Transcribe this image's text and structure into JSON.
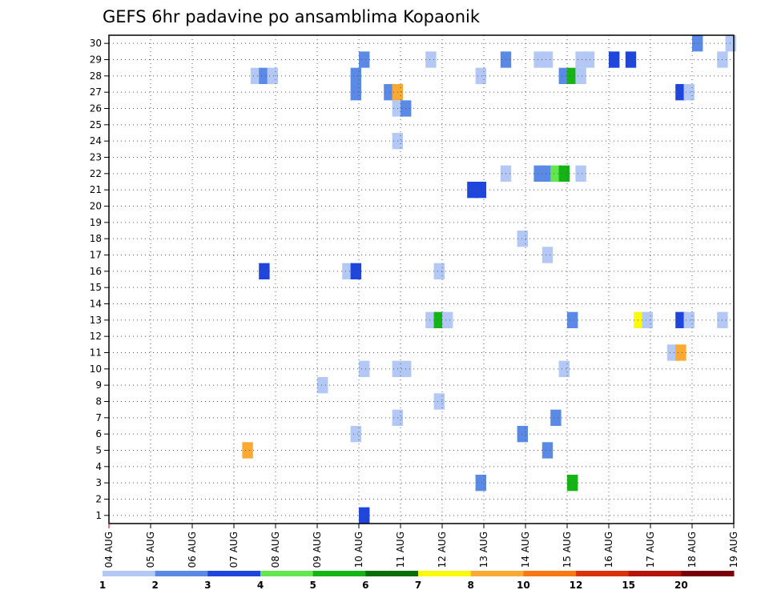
{
  "chart_data": {
    "type": "heatmap",
    "title": "GEFS 6hr padavine po ansamblima Kopaonik",
    "xlabel": "",
    "ylabel": "",
    "x_ticks": [
      "04 AUG",
      "05 AUG",
      "06 AUG",
      "07 AUG",
      "08 AUG",
      "09 AUG",
      "10 AUG",
      "11 AUG",
      "12 AUG",
      "13 AUG",
      "14 AUG",
      "15 AUG",
      "16 AUG",
      "17 AUG",
      "18 AUG",
      "19 AUG"
    ],
    "x_range_days": [
      0,
      15
    ],
    "y_ticks": [
      1,
      2,
      3,
      4,
      5,
      6,
      7,
      8,
      9,
      10,
      11,
      12,
      13,
      14,
      15,
      16,
      17,
      18,
      19,
      20,
      21,
      22,
      23,
      24,
      25,
      26,
      27,
      28,
      29,
      30
    ],
    "y_range": [
      0.5,
      30.5
    ],
    "step_hours": 6,
    "grid": true,
    "legend_position": "bottom",
    "legend": {
      "colors": [
        "#b4c8f5",
        "#5a8ae6",
        "#1e46dc",
        "#64e650",
        "#14b414",
        "#0a6e0a",
        "#fafa0a",
        "#faaa32",
        "#fa7814",
        "#dc320a",
        "#b4140a",
        "#78000a"
      ],
      "labels": [
        "1",
        "2",
        "3",
        "4",
        "5",
        "6",
        "7",
        "8",
        "10",
        "12",
        "15",
        "20"
      ]
    },
    "cells": [
      {
        "day": 14.0,
        "member": 30,
        "color": "#5a8ae6"
      },
      {
        "day": 14.8,
        "member": 30,
        "color": "#b4c8f5"
      },
      {
        "day": 6.0,
        "member": 29,
        "color": "#5a8ae6"
      },
      {
        "day": 7.6,
        "member": 29,
        "color": "#b4c8f5"
      },
      {
        "day": 9.4,
        "member": 29,
        "color": "#5a8ae6"
      },
      {
        "day": 10.2,
        "member": 29,
        "color": "#b4c8f5"
      },
      {
        "day": 10.4,
        "member": 29,
        "color": "#b4c8f5"
      },
      {
        "day": 11.2,
        "member": 29,
        "color": "#b4c8f5"
      },
      {
        "day": 11.4,
        "member": 29,
        "color": "#b4c8f5"
      },
      {
        "day": 12.0,
        "member": 29,
        "color": "#1e46dc"
      },
      {
        "day": 12.4,
        "member": 29,
        "color": "#1e46dc"
      },
      {
        "day": 14.6,
        "member": 29,
        "color": "#b4c8f5"
      },
      {
        "day": 3.4,
        "member": 28,
        "color": "#b4c8f5"
      },
      {
        "day": 3.6,
        "member": 28,
        "color": "#5a8ae6"
      },
      {
        "day": 3.8,
        "member": 28,
        "color": "#b4c8f5"
      },
      {
        "day": 5.8,
        "member": 28,
        "color": "#5a8ae6"
      },
      {
        "day": 8.8,
        "member": 28,
        "color": "#b4c8f5"
      },
      {
        "day": 10.8,
        "member": 28,
        "color": "#5a8ae6"
      },
      {
        "day": 11.0,
        "member": 28,
        "color": "#14b414"
      },
      {
        "day": 11.2,
        "member": 28,
        "color": "#b4c8f5"
      },
      {
        "day": 5.8,
        "member": 27,
        "color": "#5a8ae6"
      },
      {
        "day": 6.6,
        "member": 27,
        "color": "#5a8ae6"
      },
      {
        "day": 6.8,
        "member": 27,
        "color": "#faaa32"
      },
      {
        "day": 13.6,
        "member": 27,
        "color": "#1e46dc"
      },
      {
        "day": 13.8,
        "member": 27,
        "color": "#b4c8f5"
      },
      {
        "day": 6.8,
        "member": 26,
        "color": "#b4c8f5"
      },
      {
        "day": 7.0,
        "member": 26,
        "color": "#5a8ae6"
      },
      {
        "day": 6.8,
        "member": 24,
        "color": "#b4c8f5"
      },
      {
        "day": 9.4,
        "member": 22,
        "color": "#b4c8f5"
      },
      {
        "day": 10.2,
        "member": 22,
        "color": "#5a8ae6"
      },
      {
        "day": 10.4,
        "member": 22,
        "color": "#5a8ae6"
      },
      {
        "day": 10.6,
        "member": 22,
        "color": "#64e650"
      },
      {
        "day": 10.8,
        "member": 22,
        "color": "#14b414"
      },
      {
        "day": 11.2,
        "member": 22,
        "color": "#b4c8f5"
      },
      {
        "day": 8.6,
        "member": 21,
        "color": "#1e46dc"
      },
      {
        "day": 8.8,
        "member": 21,
        "color": "#1e46dc"
      },
      {
        "day": 9.8,
        "member": 18,
        "color": "#b4c8f5"
      },
      {
        "day": 10.4,
        "member": 17,
        "color": "#b4c8f5"
      },
      {
        "day": 3.6,
        "member": 16,
        "color": "#1e46dc"
      },
      {
        "day": 5.6,
        "member": 16,
        "color": "#b4c8f5"
      },
      {
        "day": 5.8,
        "member": 16,
        "color": "#1e46dc"
      },
      {
        "day": 7.8,
        "member": 16,
        "color": "#b4c8f5"
      },
      {
        "day": 7.6,
        "member": 13,
        "color": "#b4c8f5"
      },
      {
        "day": 7.8,
        "member": 13,
        "color": "#14b414"
      },
      {
        "day": 8.0,
        "member": 13,
        "color": "#b4c8f5"
      },
      {
        "day": 11.0,
        "member": 13,
        "color": "#5a8ae6"
      },
      {
        "day": 12.6,
        "member": 13,
        "color": "#fafa0a"
      },
      {
        "day": 12.8,
        "member": 13,
        "color": "#b4c8f5"
      },
      {
        "day": 13.6,
        "member": 13,
        "color": "#1e46dc"
      },
      {
        "day": 13.8,
        "member": 13,
        "color": "#b4c8f5"
      },
      {
        "day": 14.6,
        "member": 13,
        "color": "#b4c8f5"
      },
      {
        "day": 13.4,
        "member": 11,
        "color": "#b4c8f5"
      },
      {
        "day": 13.6,
        "member": 11,
        "color": "#faaa32"
      },
      {
        "day": 6.0,
        "member": 10,
        "color": "#b4c8f5"
      },
      {
        "day": 6.8,
        "member": 10,
        "color": "#b4c8f5"
      },
      {
        "day": 7.0,
        "member": 10,
        "color": "#b4c8f5"
      },
      {
        "day": 10.8,
        "member": 10,
        "color": "#b4c8f5"
      },
      {
        "day": 5.0,
        "member": 9,
        "color": "#b4c8f5"
      },
      {
        "day": 7.8,
        "member": 8,
        "color": "#b4c8f5"
      },
      {
        "day": 6.8,
        "member": 7,
        "color": "#b4c8f5"
      },
      {
        "day": 10.6,
        "member": 7,
        "color": "#5a8ae6"
      },
      {
        "day": 5.8,
        "member": 6,
        "color": "#b4c8f5"
      },
      {
        "day": 9.8,
        "member": 6,
        "color": "#5a8ae6"
      },
      {
        "day": 3.2,
        "member": 5,
        "color": "#faaa32"
      },
      {
        "day": 10.4,
        "member": 5,
        "color": "#5a8ae6"
      },
      {
        "day": 8.8,
        "member": 3,
        "color": "#5a8ae6"
      },
      {
        "day": 11.0,
        "member": 3,
        "color": "#14b414"
      },
      {
        "day": 6.0,
        "member": 1,
        "color": "#1e46dc"
      }
    ]
  }
}
